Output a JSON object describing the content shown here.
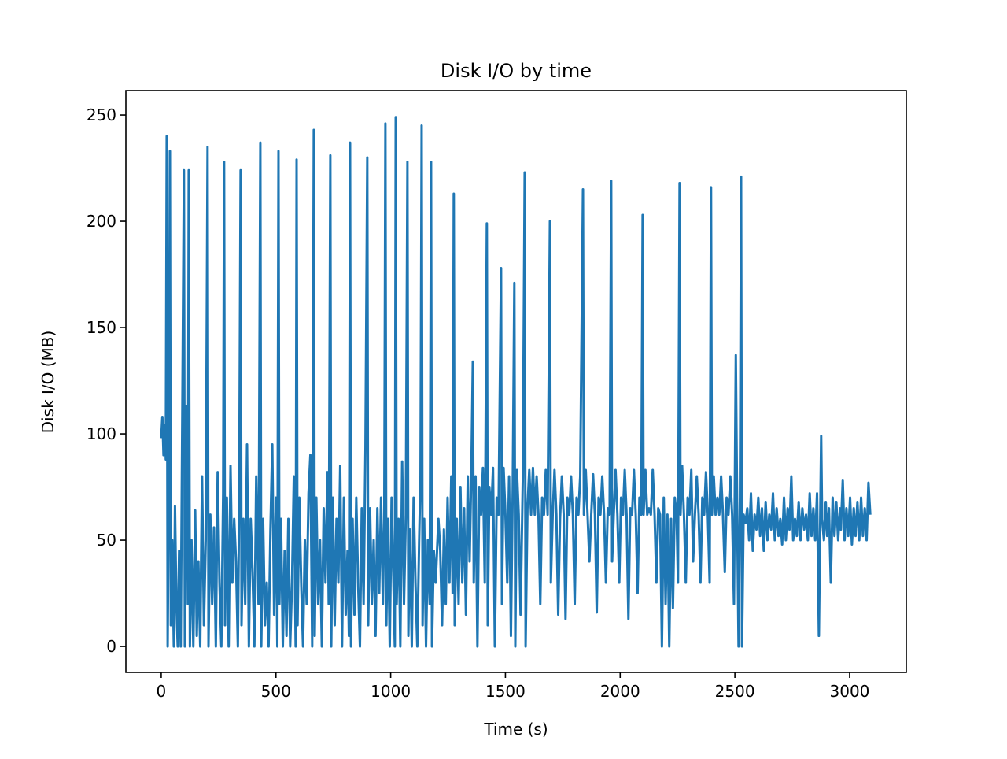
{
  "chart_data": {
    "type": "line",
    "title": "Disk I/O by time",
    "xlabel": "Time (s)",
    "ylabel": "Disk I/O (MB)",
    "color": "#1f77b4",
    "xlim": [
      -154,
      3247
    ],
    "ylim": [
      -12.2,
      261.5
    ],
    "xticks": [
      0,
      500,
      1000,
      1500,
      2000,
      2500,
      3000
    ],
    "yticks": [
      0,
      50,
      100,
      150,
      200,
      250
    ],
    "x": [
      0,
      5,
      10,
      15,
      20,
      24,
      28,
      32,
      38,
      42,
      48,
      55,
      60,
      66,
      72,
      78,
      85,
      92,
      99,
      103,
      110,
      116,
      120,
      125,
      132,
      140,
      148,
      155,
      162,
      170,
      178,
      186,
      194,
      202,
      206,
      214,
      222,
      230,
      238,
      246,
      254,
      262,
      270,
      274,
      278,
      286,
      294,
      302,
      310,
      318,
      326,
      334,
      340,
      346,
      350,
      358,
      366,
      374,
      382,
      390,
      398,
      406,
      414,
      424,
      432,
      436,
      444,
      452,
      460,
      468,
      476,
      484,
      492,
      500,
      506,
      511,
      515,
      522,
      530,
      538,
      546,
      554,
      562,
      570,
      578,
      586,
      590,
      594,
      602,
      610,
      618,
      626,
      634,
      642,
      650,
      658,
      665,
      669,
      676,
      684,
      692,
      700,
      708,
      716,
      724,
      730,
      737,
      741,
      748,
      756,
      764,
      772,
      780,
      788,
      796,
      804,
      812,
      818,
      823,
      827,
      834,
      842,
      850,
      858,
      866,
      874,
      882,
      890,
      898,
      902,
      910,
      918,
      926,
      934,
      942,
      950,
      958,
      966,
      972,
      977,
      981,
      988,
      996,
      1004,
      1012,
      1018,
      1022,
      1026,
      1034,
      1042,
      1050,
      1058,
      1066,
      1073,
      1077,
      1084,
      1092,
      1100,
      1108,
      1116,
      1124,
      1130,
      1135,
      1139,
      1146,
      1154,
      1162,
      1170,
      1176,
      1180,
      1188,
      1196,
      1208,
      1216,
      1224,
      1232,
      1240,
      1248,
      1256,
      1264,
      1270,
      1275,
      1279,
      1288,
      1296,
      1304,
      1312,
      1320,
      1328,
      1336,
      1344,
      1352,
      1358,
      1362,
      1370,
      1378,
      1386,
      1394,
      1402,
      1410,
      1419,
      1423,
      1430,
      1438,
      1446,
      1454,
      1462,
      1470,
      1481,
      1485,
      1492,
      1500,
      1508,
      1516,
      1524,
      1532,
      1539,
      1543,
      1550,
      1558,
      1566,
      1576,
      1584,
      1588,
      1596,
      1604,
      1612,
      1620,
      1628,
      1636,
      1644,
      1652,
      1660,
      1668,
      1676,
      1684,
      1694,
      1698,
      1706,
      1714,
      1722,
      1730,
      1738,
      1746,
      1754,
      1762,
      1770,
      1778,
      1786,
      1794,
      1802,
      1810,
      1818,
      1826,
      1838,
      1842,
      1850,
      1858,
      1866,
      1874,
      1882,
      1890,
      1898,
      1906,
      1914,
      1922,
      1930,
      1938,
      1946,
      1954,
      1961,
      1965,
      1972,
      1980,
      1988,
      1996,
      2004,
      2012,
      2020,
      2028,
      2036,
      2044,
      2052,
      2060,
      2068,
      2076,
      2084,
      2092,
      2098,
      2102,
      2110,
      2118,
      2126,
      2134,
      2142,
      2150,
      2158,
      2166,
      2174,
      2182,
      2190,
      2198,
      2206,
      2214,
      2222,
      2230,
      2238,
      2246,
      2252,
      2259,
      2263,
      2270,
      2278,
      2286,
      2294,
      2302,
      2310,
      2318,
      2326,
      2334,
      2342,
      2350,
      2358,
      2366,
      2374,
      2382,
      2390,
      2396,
      2400,
      2408,
      2416,
      2424,
      2432,
      2440,
      2448,
      2456,
      2464,
      2472,
      2480,
      2488,
      2496,
      2504,
      2510,
      2516,
      2522,
      2527,
      2531,
      2538,
      2546,
      2554,
      2562,
      2570,
      2578,
      2586,
      2594,
      2602,
      2610,
      2618,
      2626,
      2634,
      2642,
      2650,
      2658,
      2666,
      2674,
      2682,
      2690,
      2698,
      2706,
      2714,
      2722,
      2730,
      2738,
      2746,
      2754,
      2762,
      2770,
      2778,
      2786,
      2794,
      2802,
      2810,
      2818,
      2826,
      2834,
      2842,
      2850,
      2858,
      2866,
      2876,
      2880,
      2888,
      2896,
      2902,
      2910,
      2918,
      2926,
      2934,
      2942,
      2950,
      2958,
      2962,
      2970,
      2978,
      2986,
      2994,
      3002,
      3010,
      3018,
      3026,
      3034,
      3042,
      3050,
      3058,
      3066,
      3074,
      3082,
      3090
    ],
    "values": [
      98,
      108,
      90,
      104,
      88,
      240,
      0,
      60,
      233,
      10,
      50,
      0,
      66,
      20,
      0,
      45,
      0,
      110,
      224,
      0,
      113,
      20,
      224,
      0,
      50,
      0,
      64,
      5,
      40,
      0,
      80,
      10,
      50,
      235,
      0,
      62,
      20,
      56,
      0,
      82,
      30,
      0,
      72,
      228,
      10,
      70,
      0,
      85,
      30,
      60,
      40,
      0,
      72,
      224,
      10,
      60,
      20,
      95,
      0,
      60,
      35,
      0,
      80,
      20,
      237,
      0,
      60,
      10,
      30,
      0,
      55,
      95,
      15,
      70,
      0,
      233,
      20,
      60,
      0,
      45,
      5,
      60,
      0,
      30,
      80,
      0,
      229,
      10,
      70,
      30,
      0,
      50,
      20,
      72,
      90,
      0,
      243,
      5,
      70,
      20,
      50,
      0,
      65,
      30,
      82,
      20,
      231,
      0,
      70,
      10,
      60,
      30,
      85,
      0,
      70,
      15,
      45,
      5,
      237,
      0,
      60,
      15,
      70,
      30,
      0,
      65,
      20,
      93,
      230,
      10,
      65,
      20,
      50,
      5,
      65,
      25,
      70,
      20,
      60,
      246,
      10,
      60,
      0,
      70,
      30,
      0,
      249,
      20,
      60,
      0,
      87,
      20,
      62,
      228,
      5,
      55,
      0,
      70,
      30,
      0,
      50,
      80,
      245,
      10,
      60,
      0,
      50,
      20,
      228,
      0,
      45,
      30,
      60,
      45,
      10,
      55,
      20,
      70,
      30,
      80,
      25,
      213,
      10,
      60,
      20,
      75,
      30,
      65,
      15,
      80,
      40,
      85,
      134,
      30,
      80,
      0,
      75,
      62,
      84,
      30,
      199,
      10,
      75,
      62,
      84,
      0,
      70,
      62,
      178,
      20,
      84,
      62,
      30,
      80,
      5,
      75,
      171,
      0,
      83,
      62,
      15,
      80,
      223,
      0,
      65,
      83,
      62,
      84,
      62,
      80,
      62,
      20,
      70,
      62,
      83,
      62,
      200,
      30,
      62,
      83,
      62,
      15,
      60,
      80,
      62,
      13,
      70,
      62,
      80,
      62,
      20,
      70,
      62,
      80,
      215,
      62,
      83,
      62,
      40,
      62,
      81,
      62,
      16,
      70,
      62,
      80,
      62,
      30,
      65,
      62,
      219,
      40,
      62,
      83,
      62,
      30,
      70,
      62,
      83,
      62,
      13,
      65,
      62,
      83,
      62,
      25,
      70,
      62,
      203,
      62,
      83,
      62,
      65,
      62,
      83,
      62,
      30,
      65,
      62,
      0,
      70,
      20,
      62,
      0,
      60,
      18,
      70,
      62,
      30,
      218,
      62,
      85,
      62,
      30,
      70,
      62,
      83,
      40,
      62,
      80,
      62,
      30,
      70,
      62,
      82,
      62,
      30,
      216,
      62,
      80,
      62,
      70,
      62,
      80,
      62,
      35,
      70,
      62,
      80,
      62,
      20,
      137,
      62,
      0,
      70,
      221,
      0,
      62,
      58,
      65,
      50,
      72,
      45,
      62,
      55,
      70,
      52,
      65,
      45,
      68,
      50,
      62,
      55,
      72,
      50,
      65,
      52,
      60,
      48,
      70,
      50,
      65,
      55,
      80,
      50,
      60,
      52,
      68,
      50,
      65,
      55,
      62,
      50,
      72,
      52,
      65,
      50,
      72,
      5,
      99,
      60,
      50,
      68,
      52,
      65,
      30,
      70,
      52,
      68,
      50,
      65,
      55,
      78,
      50,
      65,
      52,
      70,
      48,
      65,
      52,
      68,
      50,
      70,
      52,
      65,
      50,
      77,
      62
    ]
  }
}
